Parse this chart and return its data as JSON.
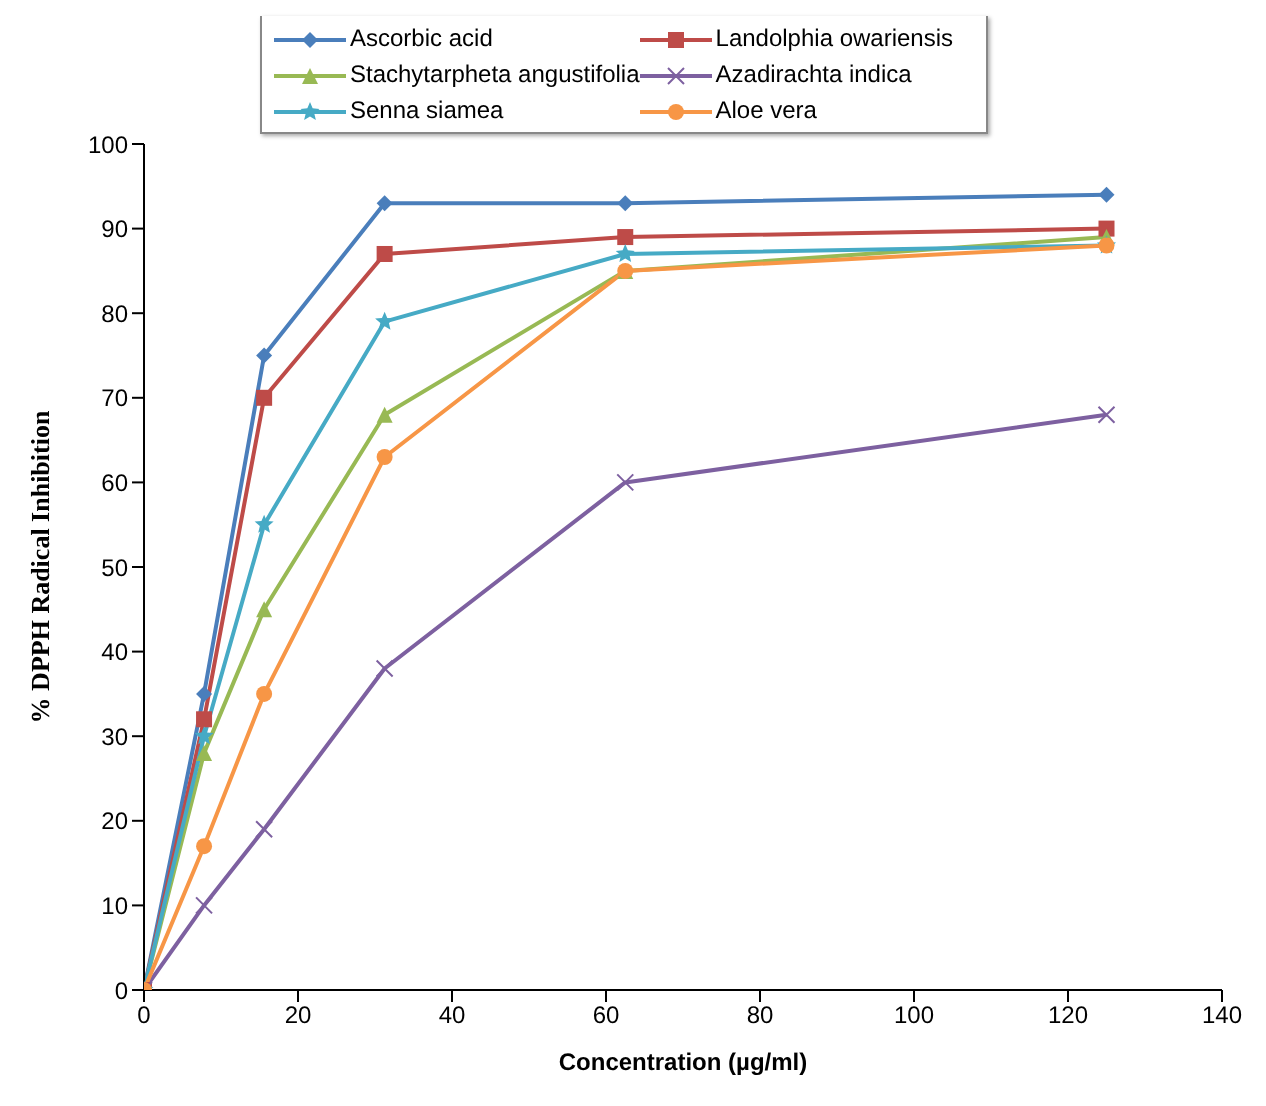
{
  "chart_data": {
    "type": "line",
    "xlabel": "Concentration  (µg/ml)",
    "ylabel": "% DPPH Radical Inhibition",
    "x": [
      0,
      7.8,
      15.6,
      31.25,
      62.5,
      125
    ],
    "series": [
      {
        "name": "Ascorbic acid",
        "color": "#4a7ebb",
        "marker": "diamond",
        "values": [
          0,
          35,
          75,
          93,
          93,
          94
        ]
      },
      {
        "name": "Landolphia owariensis",
        "color": "#be4b48",
        "marker": "square",
        "values": [
          0,
          32,
          70,
          87,
          89,
          90
        ]
      },
      {
        "name": "Stachytarpheta angustifolia",
        "color": "#98b954",
        "marker": "triangle",
        "values": [
          0,
          28,
          45,
          68,
          85,
          89
        ]
      },
      {
        "name": "Azadirachta indica",
        "color": "#7d60a0",
        "marker": "cross",
        "values": [
          0,
          10,
          19,
          38,
          60,
          68
        ]
      },
      {
        "name": "Senna siamea",
        "color": "#46aac5",
        "marker": "star",
        "values": [
          0,
          30,
          55,
          79,
          87,
          88
        ]
      },
      {
        "name": "Aloe vera",
        "color": "#f79646",
        "marker": "circle",
        "values": [
          0,
          17,
          35,
          63,
          85,
          88
        ]
      }
    ],
    "xlim": [
      0,
      140
    ],
    "xticks": [
      0,
      20,
      40,
      60,
      80,
      100,
      120,
      140
    ],
    "ylim": [
      0,
      100
    ],
    "yticks": [
      0,
      10,
      20,
      30,
      40,
      50,
      60,
      70,
      80,
      90,
      100
    ],
    "grid": false,
    "legend": "top",
    "line_style": "solid"
  }
}
